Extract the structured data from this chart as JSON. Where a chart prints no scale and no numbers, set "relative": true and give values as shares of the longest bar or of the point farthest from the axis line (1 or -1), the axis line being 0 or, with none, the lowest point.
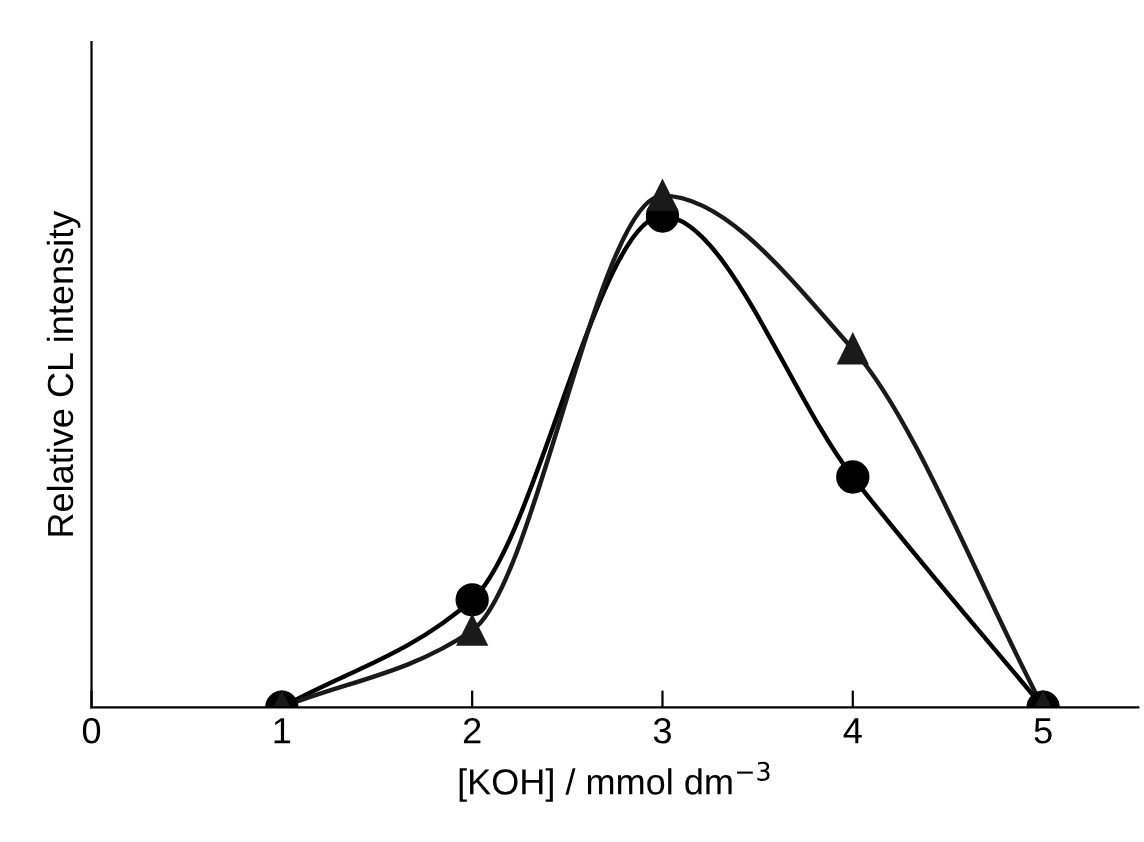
{
  "chart_data": {
    "type": "line",
    "relative": true,
    "xlabel": "[KOH] / mmol dm$^{−3}$",
    "ylabel": "Relative CL intensity",
    "x": [
      1,
      2,
      3,
      4,
      5
    ],
    "xlim": [
      0,
      5.5
    ],
    "xticks": [
      0,
      1,
      2,
      3,
      4,
      5
    ],
    "tick_labels": "x",
    "grid": false,
    "legend": false,
    "line_style": "solid",
    "series": [
      {
        "color": "#000000",
        "marker": "circle",
        "values": [
          0,
          0.21,
          0.96,
          0.45,
          0
        ]
      },
      {
        "color": "#1a1a1a",
        "marker": "triangle",
        "values": [
          0,
          0.15,
          1,
          0.7,
          0
        ]
      }
    ]
  }
}
